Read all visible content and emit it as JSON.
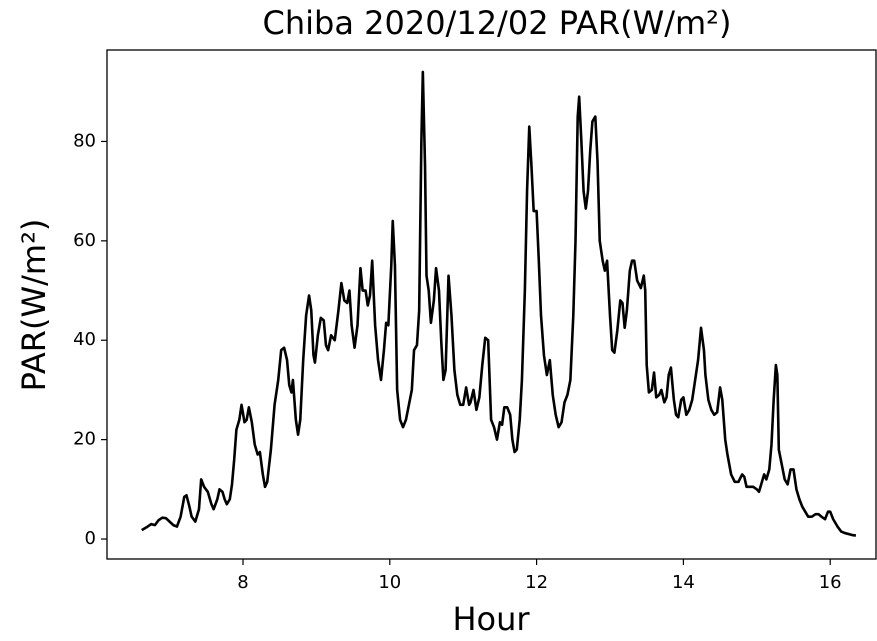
{
  "chart_data": {
    "type": "line",
    "title": "Chiba 2020/12/02 PAR(W/m²)",
    "x_label": "Hour",
    "y_label": "PAR(W/m²)",
    "color": "#000000",
    "xlim": [
      6.147,
      16.624
    ],
    "ylim": [
      -4.02,
      98.4
    ],
    "xticks": [
      8,
      10,
      12,
      14,
      16
    ],
    "yticks": [
      0,
      20,
      40,
      60,
      80
    ],
    "grid": false,
    "x": [
      6.62,
      6.7,
      6.75,
      6.8,
      6.85,
      6.9,
      6.95,
      7.0,
      7.05,
      7.1,
      7.15,
      7.2,
      7.23,
      7.27,
      7.3,
      7.35,
      7.4,
      7.43,
      7.47,
      7.52,
      7.57,
      7.6,
      7.65,
      7.68,
      7.72,
      7.75,
      7.78,
      7.82,
      7.85,
      7.88,
      7.91,
      7.95,
      7.98,
      8.02,
      8.05,
      8.08,
      8.12,
      8.16,
      8.2,
      8.23,
      8.27,
      8.3,
      8.33,
      8.38,
      8.43,
      8.48,
      8.52,
      8.56,
      8.6,
      8.63,
      8.66,
      8.68,
      8.72,
      8.75,
      8.78,
      8.82,
      8.86,
      8.9,
      8.93,
      8.96,
      8.98,
      9.02,
      9.06,
      9.1,
      9.13,
      9.16,
      9.2,
      9.25,
      9.3,
      9.34,
      9.38,
      9.42,
      9.45,
      9.48,
      9.52,
      9.56,
      9.6,
      9.63,
      9.67,
      9.7,
      9.73,
      9.76,
      9.8,
      9.84,
      9.88,
      9.92,
      9.95,
      9.98,
      10.02,
      10.04,
      10.07,
      10.1,
      10.14,
      10.18,
      10.22,
      10.26,
      10.3,
      10.33,
      10.37,
      10.4,
      10.43,
      10.45,
      10.48,
      10.5,
      10.53,
      10.56,
      10.6,
      10.63,
      10.67,
      10.7,
      10.73,
      10.76,
      10.8,
      10.84,
      10.88,
      10.92,
      10.96,
      11.0,
      11.04,
      11.08,
      11.1,
      11.14,
      11.18,
      11.22,
      11.26,
      11.3,
      11.34,
      11.38,
      11.42,
      11.46,
      11.5,
      11.53,
      11.56,
      11.6,
      11.64,
      11.67,
      11.7,
      11.73,
      11.77,
      11.8,
      11.84,
      11.87,
      11.9,
      11.93,
      11.96,
      12.0,
      12.03,
      12.06,
      12.1,
      12.14,
      12.18,
      12.22,
      12.26,
      12.3,
      12.34,
      12.38,
      12.42,
      12.46,
      12.5,
      12.53,
      12.56,
      12.58,
      12.61,
      12.64,
      12.67,
      12.7,
      12.73,
      12.76,
      12.8,
      12.83,
      12.86,
      12.9,
      12.93,
      12.96,
      13.0,
      13.03,
      13.06,
      13.1,
      13.14,
      13.17,
      13.2,
      13.23,
      13.27,
      13.3,
      13.33,
      13.37,
      13.42,
      13.46,
      13.48,
      13.5,
      13.53,
      13.57,
      13.6,
      13.63,
      13.67,
      13.7,
      13.74,
      13.77,
      13.8,
      13.83,
      13.87,
      13.9,
      13.93,
      13.97,
      14.0,
      14.04,
      14.08,
      14.12,
      14.16,
      14.2,
      14.24,
      14.28,
      14.3,
      14.34,
      14.38,
      14.42,
      14.46,
      14.5,
      14.53,
      14.57,
      14.6,
      14.65,
      14.7,
      14.75,
      14.8,
      14.83,
      14.86,
      14.9,
      14.95,
      15.0,
      15.03,
      15.07,
      15.1,
      15.13,
      15.17,
      15.2,
      15.23,
      15.26,
      15.28,
      15.3,
      15.34,
      15.38,
      15.42,
      15.46,
      15.5,
      15.54,
      15.58,
      15.62,
      15.66,
      15.7,
      15.75,
      15.8,
      15.84,
      15.88,
      15.93,
      15.97,
      16.0,
      16.04,
      16.1,
      16.15,
      16.2,
      16.3,
      16.35
    ],
    "values": [
      1.8,
      2.5,
      3,
      2.8,
      3.8,
      4.3,
      4.2,
      3.5,
      2.8,
      2.5,
      4.5,
      8.5,
      8.8,
      6.5,
      4.5,
      3.5,
      6,
      12,
      10.5,
      9.5,
      7,
      6,
      8,
      10,
      9.5,
      8,
      7,
      8,
      11,
      16,
      22,
      24,
      27,
      23.5,
      24,
      26.5,
      23.5,
      19,
      17,
      17.5,
      13,
      10.5,
      11.5,
      18,
      27,
      32,
      38,
      38.5,
      36,
      31,
      29.5,
      32,
      24,
      21,
      24,
      36,
      45,
      49,
      46,
      37,
      35.5,
      41,
      44.5,
      44,
      39,
      38,
      41,
      40,
      46,
      51.5,
      48,
      47.5,
      50,
      43,
      38.5,
      43,
      54.5,
      50,
      50,
      47,
      49,
      56,
      43,
      36,
      32,
      38,
      43.5,
      43,
      55,
      64,
      55,
      30,
      24,
      22.5,
      24,
      27,
      30,
      38,
      39,
      46,
      80,
      94,
      75,
      53,
      50,
      43.5,
      48,
      54.5,
      50,
      40,
      32,
      34,
      53,
      45,
      34,
      29,
      27,
      27,
      30.5,
      27,
      27.5,
      30,
      26,
      28.5,
      35,
      40.5,
      40,
      24,
      22.5,
      20,
      23.5,
      23,
      26.5,
      26.5,
      25,
      20,
      17.5,
      18,
      24,
      32,
      50,
      70,
      83,
      75,
      66,
      66,
      56,
      45,
      37,
      33,
      36,
      29,
      25,
      22.5,
      23.5,
      27.5,
      29,
      32,
      45,
      60,
      85,
      89,
      80,
      70,
      66.5,
      70,
      78,
      84,
      85,
      76,
      60,
      56,
      54,
      56,
      45,
      38,
      37.5,
      42,
      48,
      47.5,
      42.5,
      46,
      54,
      56,
      56,
      52,
      50.5,
      53,
      50,
      35,
      29.5,
      30,
      33.5,
      28.5,
      29,
      30,
      27.5,
      28.5,
      33,
      34.5,
      28,
      25,
      24.5,
      28,
      28.5,
      25,
      26,
      28,
      32,
      36,
      42.5,
      38,
      33,
      28,
      26,
      25,
      25.5,
      30.5,
      28,
      20,
      17,
      13,
      11.5,
      11.5,
      13,
      12.5,
      10.5,
      10.5,
      10.5,
      10,
      9.5,
      11.5,
      13,
      12,
      14,
      19,
      28,
      35,
      33,
      18,
      15,
      12,
      11,
      14,
      14,
      10,
      8,
      6.5,
      5.5,
      4.5,
      4.5,
      5,
      5,
      4.5,
      4,
      5.5,
      5.5,
      4,
      2.5,
      1.5,
      1.2,
      0.8,
      0.7
    ]
  }
}
